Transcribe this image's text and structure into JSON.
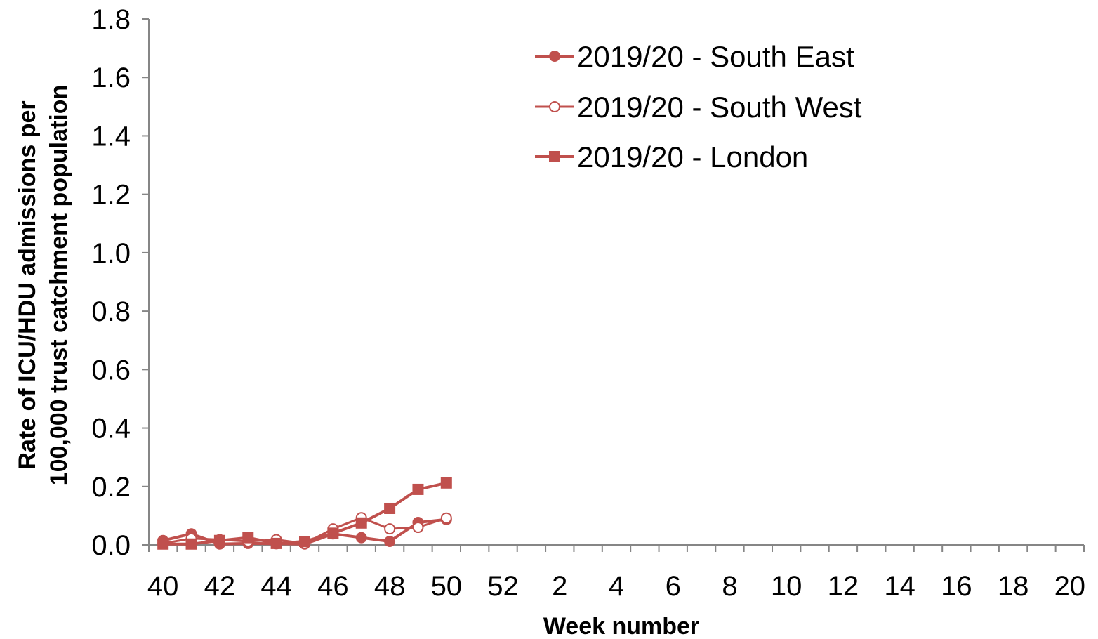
{
  "chart_data": {
    "type": "line",
    "xlabel": "Week number",
    "ylabel": [
      "Rate of ICU/HDU admissions per",
      "100,000 trust catchment population"
    ],
    "ylim": [
      0,
      1.8
    ],
    "yticks": [
      "0.0",
      "0.2",
      "0.4",
      "0.6",
      "0.8",
      "1.0",
      "1.2",
      "1.4",
      "1.6",
      "1.8"
    ],
    "x_categories": [
      40,
      41,
      42,
      43,
      44,
      45,
      46,
      47,
      48,
      49,
      50,
      51,
      52,
      1,
      2,
      3,
      4,
      5,
      6,
      7,
      8,
      9,
      10,
      11,
      12,
      13,
      14,
      15,
      16,
      17,
      18,
      19,
      20
    ],
    "x_tick_labels": [
      "40",
      "42",
      "44",
      "46",
      "48",
      "50",
      "52",
      "2",
      "4",
      "6",
      "8",
      "10",
      "12",
      "14",
      "16",
      "18",
      "20"
    ],
    "grid": false,
    "legend_position": "top-right",
    "colors": {
      "series": "#C0504D"
    },
    "series": [
      {
        "name": "2019/20 - South East",
        "marker": "filled-circle",
        "x": [
          40,
          41,
          42,
          43,
          44,
          45,
          46,
          47,
          48,
          49,
          50
        ],
        "values": [
          0.015,
          0.038,
          0.003,
          0.005,
          0.004,
          0.003,
          0.038,
          0.025,
          0.012,
          0.077,
          0.087
        ]
      },
      {
        "name": "2019/20 - South West",
        "marker": "open-circle",
        "x": [
          40,
          41,
          42,
          43,
          44,
          45,
          46,
          47,
          48,
          49,
          50
        ],
        "values": [
          0.005,
          0.022,
          0.018,
          0.012,
          0.018,
          0.005,
          0.055,
          0.093,
          0.055,
          0.06,
          0.092
        ]
      },
      {
        "name": "2019/20 - London",
        "marker": "square",
        "x": [
          40,
          41,
          42,
          43,
          44,
          45,
          46,
          47,
          48,
          49,
          50
        ],
        "values": [
          0.003,
          0.003,
          0.015,
          0.025,
          0.005,
          0.012,
          0.04,
          0.075,
          0.125,
          0.19,
          0.212
        ]
      }
    ]
  }
}
